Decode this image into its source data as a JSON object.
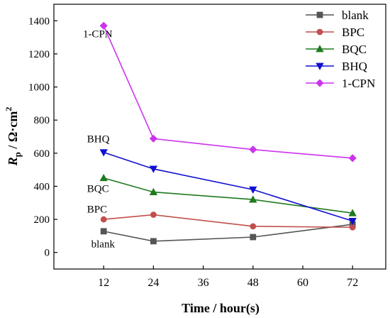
{
  "chart_data": {
    "type": "line",
    "xlabel": "Time / hour(s)",
    "ylabel_main": "R",
    "ylabel_sub": "p",
    "ylabel_rest": " / Ω·cm",
    "ylabel_sup": "2",
    "xlim": [
      0,
      80
    ],
    "ylim": [
      -100,
      1500
    ],
    "x_ticks": [
      12,
      24,
      36,
      48,
      60,
      72
    ],
    "y_ticks": [
      0,
      200,
      400,
      600,
      800,
      1000,
      1200,
      1400
    ],
    "grid": false,
    "legend_position": "top-right",
    "series": [
      {
        "name": "blank",
        "color": "#555555",
        "marker": "square",
        "x": [
          12,
          24,
          48,
          72
        ],
        "y": [
          128,
          68,
          93,
          170
        ]
      },
      {
        "name": "BPC",
        "color": "#c0504d",
        "marker": "circle",
        "x": [
          12,
          24,
          48,
          72
        ],
        "y": [
          200,
          228,
          158,
          152
        ]
      },
      {
        "name": "BQC",
        "color": "#1f7a1f",
        "marker": "triangle-up",
        "x": [
          12,
          24,
          48,
          72
        ],
        "y": [
          450,
          365,
          320,
          238
        ]
      },
      {
        "name": "BHQ",
        "color": "#1010d0",
        "marker": "triangle-down",
        "x": [
          12,
          24,
          48,
          72
        ],
        "y": [
          605,
          505,
          380,
          190
        ]
      },
      {
        "name": "1-CPN",
        "color": "#cc33ee",
        "marker": "diamond",
        "x": [
          12,
          24,
          48,
          72
        ],
        "y": [
          1370,
          688,
          622,
          570
        ]
      }
    ],
    "annotations": [
      {
        "text": "1-CPN",
        "color": "#cc33ee",
        "x": 7,
        "y": 1300
      },
      {
        "text": "BHQ",
        "color": "#1010d0",
        "x": 8,
        "y": 665
      },
      {
        "text": "BQC",
        "color": "#1f7a1f",
        "x": 8,
        "y": 365
      },
      {
        "text": "BPC",
        "color": "#c0504d",
        "x": 8,
        "y": 240
      },
      {
        "text": "blank",
        "color": "#222222",
        "x": 9,
        "y": 30
      }
    ]
  }
}
